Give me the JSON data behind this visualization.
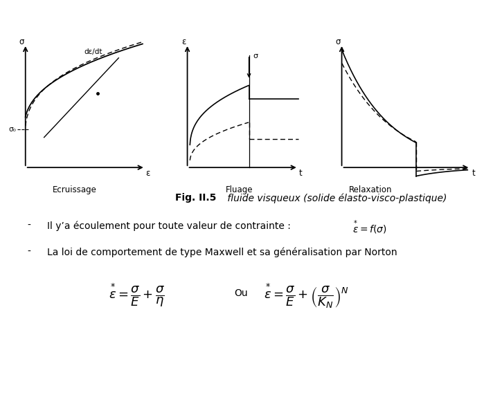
{
  "bg_color": "#ffffff",
  "title_bold": "Fig. II.5",
  "title_italic": " fluide visqueux (solide élasto-visco-plastique)",
  "bullet1_text": "Il y’a écoulement pour toute valeur de contrainte : ",
  "bullet2_text": "La loi de comportement de type Maxwell et sa généralisation par Norton",
  "plot1_xlabel": "ε",
  "plot1_ylabel": "σ",
  "plot1_sigma0": "σ₀",
  "plot1_de": "dε/dt",
  "plot1_sublabel": "Ecruissage",
  "plot2_xlabel": "t",
  "plot2_ylabel": "ε",
  "plot2_sigma": "σ",
  "plot2_sublabel": "Fluage",
  "plot3_xlabel": "t",
  "plot3_ylabel": "σ",
  "plot3_sublabel": "Relaxation",
  "fig_width": 7.12,
  "fig_height": 6.0,
  "dpi": 100
}
